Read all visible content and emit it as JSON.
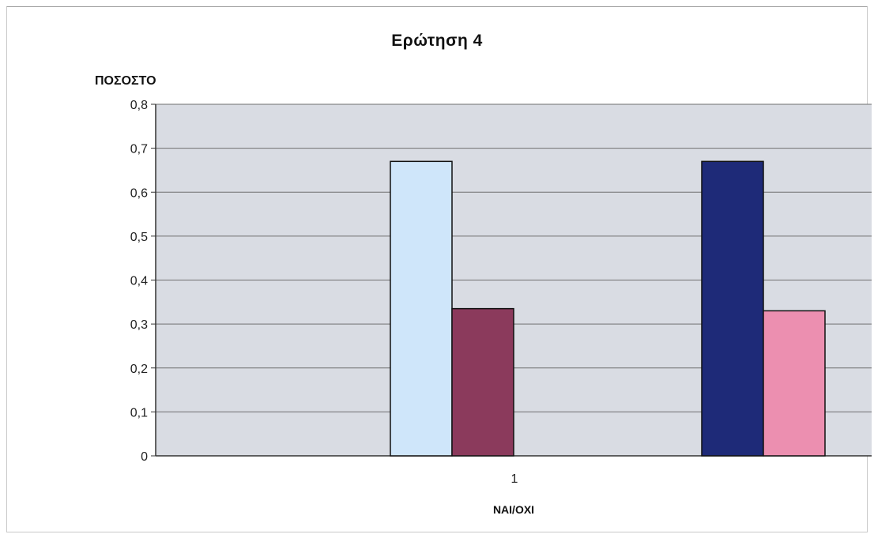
{
  "chart_data": {
    "type": "bar",
    "title": "Ερώτηση 4",
    "ylabel": "ΠΟΣΟΣΤΟ",
    "xlabel": "ΝΑΙ/ΟΧΙ",
    "categories": [
      "1"
    ],
    "ylim": [
      0,
      0.8
    ],
    "yticks": [
      "0",
      "0,1",
      "0,2",
      "0,3",
      "0,4",
      "0,5",
      "0,6",
      "0,7",
      "0,8"
    ],
    "grid": true,
    "series": [
      {
        "values": [
          0.67
        ],
        "color": "#cfe6fa"
      },
      {
        "values": [
          0.335
        ],
        "color": "#8b3a5c"
      },
      {
        "values": [
          0.67
        ],
        "color": "#1e2a78"
      },
      {
        "values": [
          0.33
        ],
        "color": "#ec8fb0"
      }
    ],
    "plot_background": "#d9dce3"
  }
}
